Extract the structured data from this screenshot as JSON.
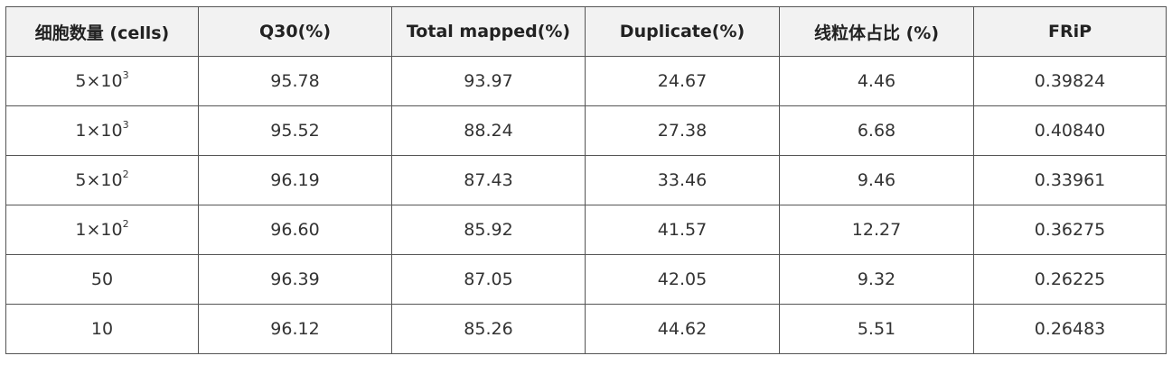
{
  "table": {
    "header": [
      "细胞数量 (cells)",
      "Q30(%)",
      "Total mapped(%)",
      "Duplicate(%)",
      "线粒体占比 (%)",
      "FRiP"
    ],
    "rows": [
      [
        {
          "base": "5×10",
          "exp": "3"
        },
        "95.78",
        "93.97",
        "24.67",
        "4.46",
        "0.39824"
      ],
      [
        {
          "base": "1×10",
          "exp": "3"
        },
        "95.52",
        "88.24",
        "27.38",
        "6.68",
        "0.40840"
      ],
      [
        {
          "base": "5×10",
          "exp": "2"
        },
        "96.19",
        "87.43",
        "33.46",
        "9.46",
        "0.33961"
      ],
      [
        {
          "base": "1×10",
          "exp": "2"
        },
        "96.60",
        "85.92",
        "41.57",
        "12.27",
        "0.36275"
      ],
      [
        "50",
        "96.39",
        "87.05",
        "42.05",
        "9.32",
        "0.26225"
      ],
      [
        "10",
        "96.12",
        "85.26",
        "44.62",
        "5.51",
        "0.26483"
      ]
    ]
  }
}
